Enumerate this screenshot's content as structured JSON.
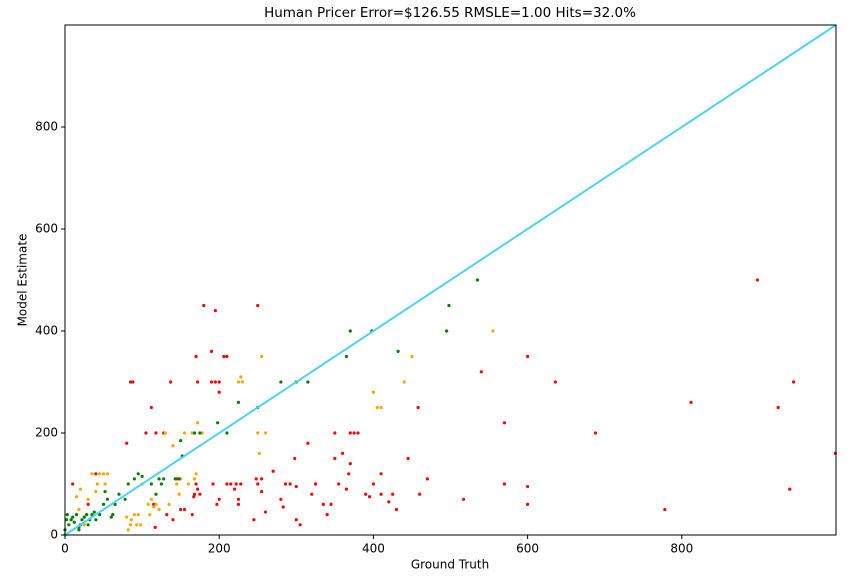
{
  "chart_data": {
    "type": "scatter",
    "title": "Human Pricer Error=$126.55 RMSLE=1.00 Hits=32.0%",
    "x_label": "Ground Truth",
    "y_label": "Model Estimate",
    "xlim": [
      0,
      1000
    ],
    "ylim": [
      0,
      1000
    ],
    "xticks": [
      0,
      200,
      400,
      600,
      800
    ],
    "yticks": [
      0,
      200,
      400,
      600,
      800
    ],
    "reference_line": {
      "color": "#4dd2f5",
      "x": [
        0,
        1000
      ],
      "y": [
        0,
        1000
      ]
    },
    "series": [
      {
        "color": "#ff0000",
        "x": [
          999,
          945,
          940,
          925,
          898,
          812,
          778,
          688,
          636,
          600,
          600,
          600,
          570,
          570,
          540,
          517,
          470,
          460,
          458,
          445,
          430,
          425,
          420,
          410,
          410,
          400,
          395,
          390,
          380,
          375,
          370,
          370,
          368,
          365,
          360,
          355,
          350,
          350,
          345,
          340,
          335,
          325,
          320,
          315,
          305,
          300,
          300,
          298,
          292,
          286,
          283,
          280,
          270,
          260,
          255,
          255,
          250,
          250,
          248,
          245,
          228,
          225,
          225,
          222,
          220,
          215,
          210,
          210,
          206,
          200,
          200,
          200,
          197,
          195,
          195,
          192,
          190,
          190,
          180,
          175,
          172,
          172,
          170,
          170,
          168,
          167,
          165,
          155,
          150,
          145,
          140,
          137,
          132,
          128,
          118,
          117,
          115,
          112,
          105,
          88,
          85,
          80,
          40,
          10,
          30
        ],
        "values": [
          160,
          300,
          90,
          250,
          500,
          260,
          50,
          200,
          300,
          350,
          95,
          60,
          100,
          220,
          320,
          70,
          110,
          80,
          250,
          150,
          50,
          80,
          65,
          120,
          80,
          100,
          75,
          80,
          200,
          200,
          200,
          140,
          120,
          90,
          160,
          100,
          200,
          150,
          60,
          40,
          60,
          100,
          80,
          180,
          20,
          30,
          95,
          150,
          100,
          100,
          55,
          70,
          125,
          45,
          110,
          85,
          100,
          450,
          110,
          30,
          100,
          60,
          70,
          100,
          90,
          100,
          100,
          350,
          350,
          280,
          300,
          70,
          60,
          300,
          440,
          100,
          300,
          360,
          450,
          80,
          90,
          300,
          350,
          100,
          80,
          75,
          40,
          50,
          50,
          110,
          30,
          300,
          40,
          200,
          200,
          15,
          60,
          250,
          200,
          300,
          300,
          180,
          120,
          100,
          60
        ]
      },
      {
        "color": "#ffa500",
        "x": [
          555,
          450,
          440,
          410,
          405,
          400,
          260,
          255,
          252,
          250,
          230,
          228,
          225,
          178,
          172,
          170,
          168,
          165,
          160,
          155,
          150,
          148,
          145,
          140,
          135,
          130,
          122,
          118,
          115,
          112,
          110,
          108,
          100,
          98,
          95,
          93,
          90,
          86,
          85,
          82,
          80,
          65,
          55,
          52,
          50,
          45,
          42,
          40,
          35,
          30,
          25,
          20,
          18,
          15
        ],
        "values": [
          400,
          350,
          300,
          250,
          250,
          280,
          200,
          350,
          160,
          200,
          300,
          310,
          300,
          200,
          220,
          120,
          110,
          200,
          100,
          200,
          110,
          80,
          100,
          175,
          60,
          200,
          50,
          60,
          55,
          70,
          40,
          60,
          100,
          20,
          40,
          20,
          40,
          30,
          20,
          10,
          35,
          60,
          120,
          100,
          120,
          120,
          100,
          85,
          120,
          70,
          20,
          90,
          50,
          75
        ]
      },
      {
        "color": "#008000",
        "x": [
          535,
          498,
          495,
          432,
          398,
          370,
          365,
          315,
          300,
          280,
          250,
          225,
          210,
          198,
          175,
          168,
          152,
          150,
          148,
          143,
          128,
          125,
          122,
          118,
          112,
          100,
          95,
          90,
          82,
          78,
          70,
          65,
          62,
          60,
          55,
          52,
          50,
          45,
          40,
          38,
          35,
          32,
          30,
          28,
          25,
          22,
          20,
          18,
          15,
          12,
          10,
          8,
          5,
          3,
          2,
          0,
          0,
          18
        ],
        "values": [
          500,
          450,
          400,
          360,
          400,
          400,
          350,
          300,
          300,
          300,
          250,
          260,
          200,
          220,
          200,
          200,
          155,
          185,
          110,
          110,
          110,
          100,
          110,
          80,
          100,
          115,
          120,
          110,
          100,
          70,
          80,
          60,
          40,
          35,
          70,
          85,
          60,
          40,
          30,
          45,
          40,
          30,
          20,
          40,
          35,
          30,
          20,
          15,
          40,
          25,
          35,
          30,
          20,
          40,
          30,
          0,
          10,
          10
        ]
      }
    ]
  }
}
